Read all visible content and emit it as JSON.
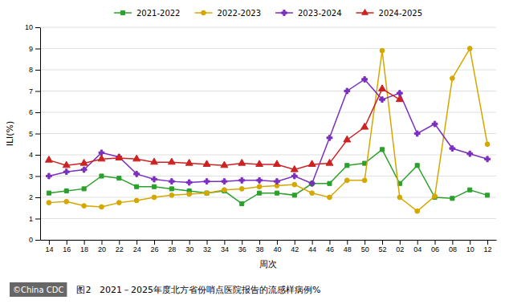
{
  "chart_data": {
    "type": "line",
    "categories": [
      "14",
      "16",
      "18",
      "20",
      "22",
      "24",
      "26",
      "28",
      "30",
      "32",
      "34",
      "36",
      "38",
      "40",
      "42",
      "44",
      "46",
      "48",
      "50",
      "52",
      "02",
      "04",
      "06",
      "08",
      "10",
      "12"
    ],
    "series": [
      {
        "name": "2021-2022",
        "color": "#2ca02c",
        "marker": "square",
        "values": [
          2.2,
          2.3,
          2.4,
          3.0,
          2.9,
          2.5,
          2.5,
          2.4,
          2.3,
          2.2,
          2.3,
          1.7,
          2.2,
          2.2,
          2.1,
          2.65,
          2.65,
          3.5,
          3.6,
          4.25,
          2.65,
          3.5,
          2.0,
          1.95,
          2.35,
          2.1
        ]
      },
      {
        "name": "2022-2023",
        "color": "#d4a800",
        "marker": "circle",
        "values": [
          1.75,
          1.8,
          1.6,
          1.55,
          1.75,
          1.85,
          2.0,
          2.1,
          2.15,
          2.2,
          2.35,
          2.4,
          2.5,
          2.55,
          2.6,
          2.2,
          2.0,
          2.8,
          2.8,
          8.9,
          2.0,
          1.35,
          2.05,
          7.6,
          9.0,
          4.5
        ]
      },
      {
        "name": "2023-2024",
        "color": "#7b2fbe",
        "marker": "plus",
        "values": [
          3.0,
          3.2,
          3.3,
          4.1,
          3.9,
          3.1,
          2.85,
          2.75,
          2.7,
          2.75,
          2.75,
          2.8,
          2.8,
          2.75,
          3.0,
          2.65,
          4.8,
          7.0,
          7.55,
          6.6,
          6.9,
          5.0,
          5.45,
          4.3,
          4.05,
          3.8
        ]
      },
      {
        "name": "2024-2025",
        "color": "#cc2222",
        "marker": "triangle",
        "values": [
          3.75,
          3.5,
          3.6,
          3.8,
          3.85,
          3.8,
          3.65,
          3.65,
          3.6,
          3.55,
          3.5,
          3.6,
          3.55,
          3.55,
          3.3,
          3.55,
          3.6,
          4.7,
          5.3,
          7.1,
          6.6,
          null,
          null,
          null,
          null,
          null
        ]
      }
    ],
    "ylim": [
      0,
      10
    ],
    "yticks": [
      0,
      1,
      2,
      3,
      4,
      5,
      6,
      7,
      8,
      9,
      10
    ],
    "y_label": "ILI(%)",
    "x_label": "周次",
    "annotations": [
      "©China CDC",
      "图2   2021－2025年度北方省份哨点医院报告的流感样病例%"
    ],
    "grid": true,
    "legend": "top"
  }
}
